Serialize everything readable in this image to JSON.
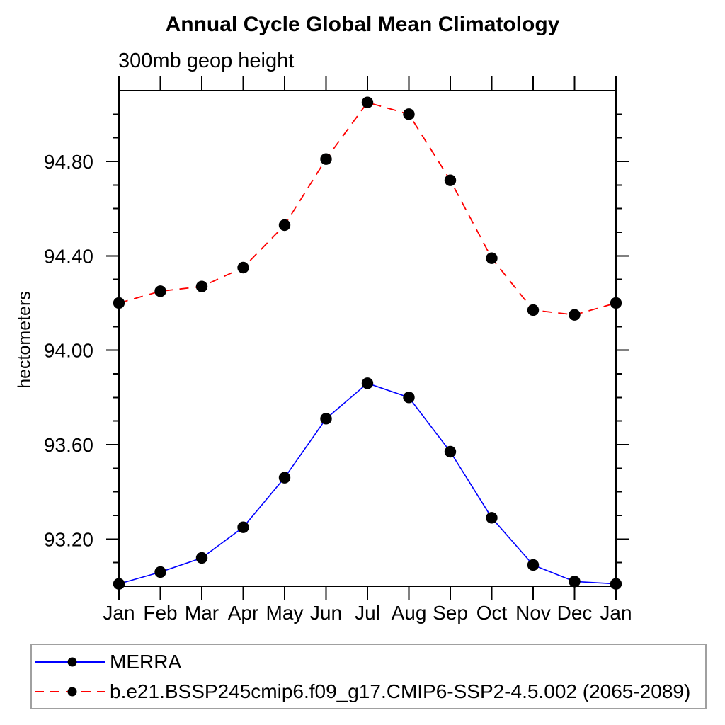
{
  "title": "Annual Cycle Global Mean Climatology",
  "subtitle": "300mb geop height",
  "ylabel": "hectometers",
  "colors": {
    "merra_line": "#0000ff",
    "model_line": "#ff0000",
    "marker": "#000000",
    "axis": "#000000",
    "legend_border": "#a0a0a0",
    "background": "#ffffff"
  },
  "legend": [
    {
      "label": "MERRA",
      "color": "#0000ff",
      "line_style": "solid"
    },
    {
      "label": "b.e21.BSSP245cmip6.f09_g17.CMIP6-SSP2-4.5.002 (2065-2089)",
      "color": "#ff0000",
      "line_style": "dashed"
    }
  ],
  "chart_data": {
    "type": "line",
    "title": "Annual Cycle Global Mean Climatology",
    "subtitle": "300mb geop height",
    "xlabel": "",
    "ylabel": "hectometers",
    "categories": [
      "Jan",
      "Feb",
      "Mar",
      "Apr",
      "May",
      "Jun",
      "Jul",
      "Aug",
      "Sep",
      "Oct",
      "Nov",
      "Dec",
      "Jan"
    ],
    "ylim": [
      93.0,
      95.1
    ],
    "yticks_major": [
      93.2,
      93.6,
      94.0,
      94.4,
      94.8
    ],
    "ytick_minor_step": 0.1,
    "grid": false,
    "legend_position": "below-left",
    "series": [
      {
        "name": "MERRA",
        "color": "#0000ff",
        "style": "solid",
        "marker": "circle",
        "values": [
          93.01,
          93.06,
          93.12,
          93.25,
          93.46,
          93.71,
          93.86,
          93.8,
          93.57,
          93.29,
          93.09,
          93.02,
          93.01
        ]
      },
      {
        "name": "b.e21.BSSP245cmip6.f09_g17.CMIP6-SSP2-4.5.002 (2065-2089)",
        "color": "#ff0000",
        "style": "dashed",
        "marker": "circle",
        "values": [
          94.2,
          94.25,
          94.27,
          94.35,
          94.53,
          94.81,
          95.05,
          95.0,
          94.72,
          94.39,
          94.17,
          94.15,
          94.2
        ]
      }
    ]
  }
}
